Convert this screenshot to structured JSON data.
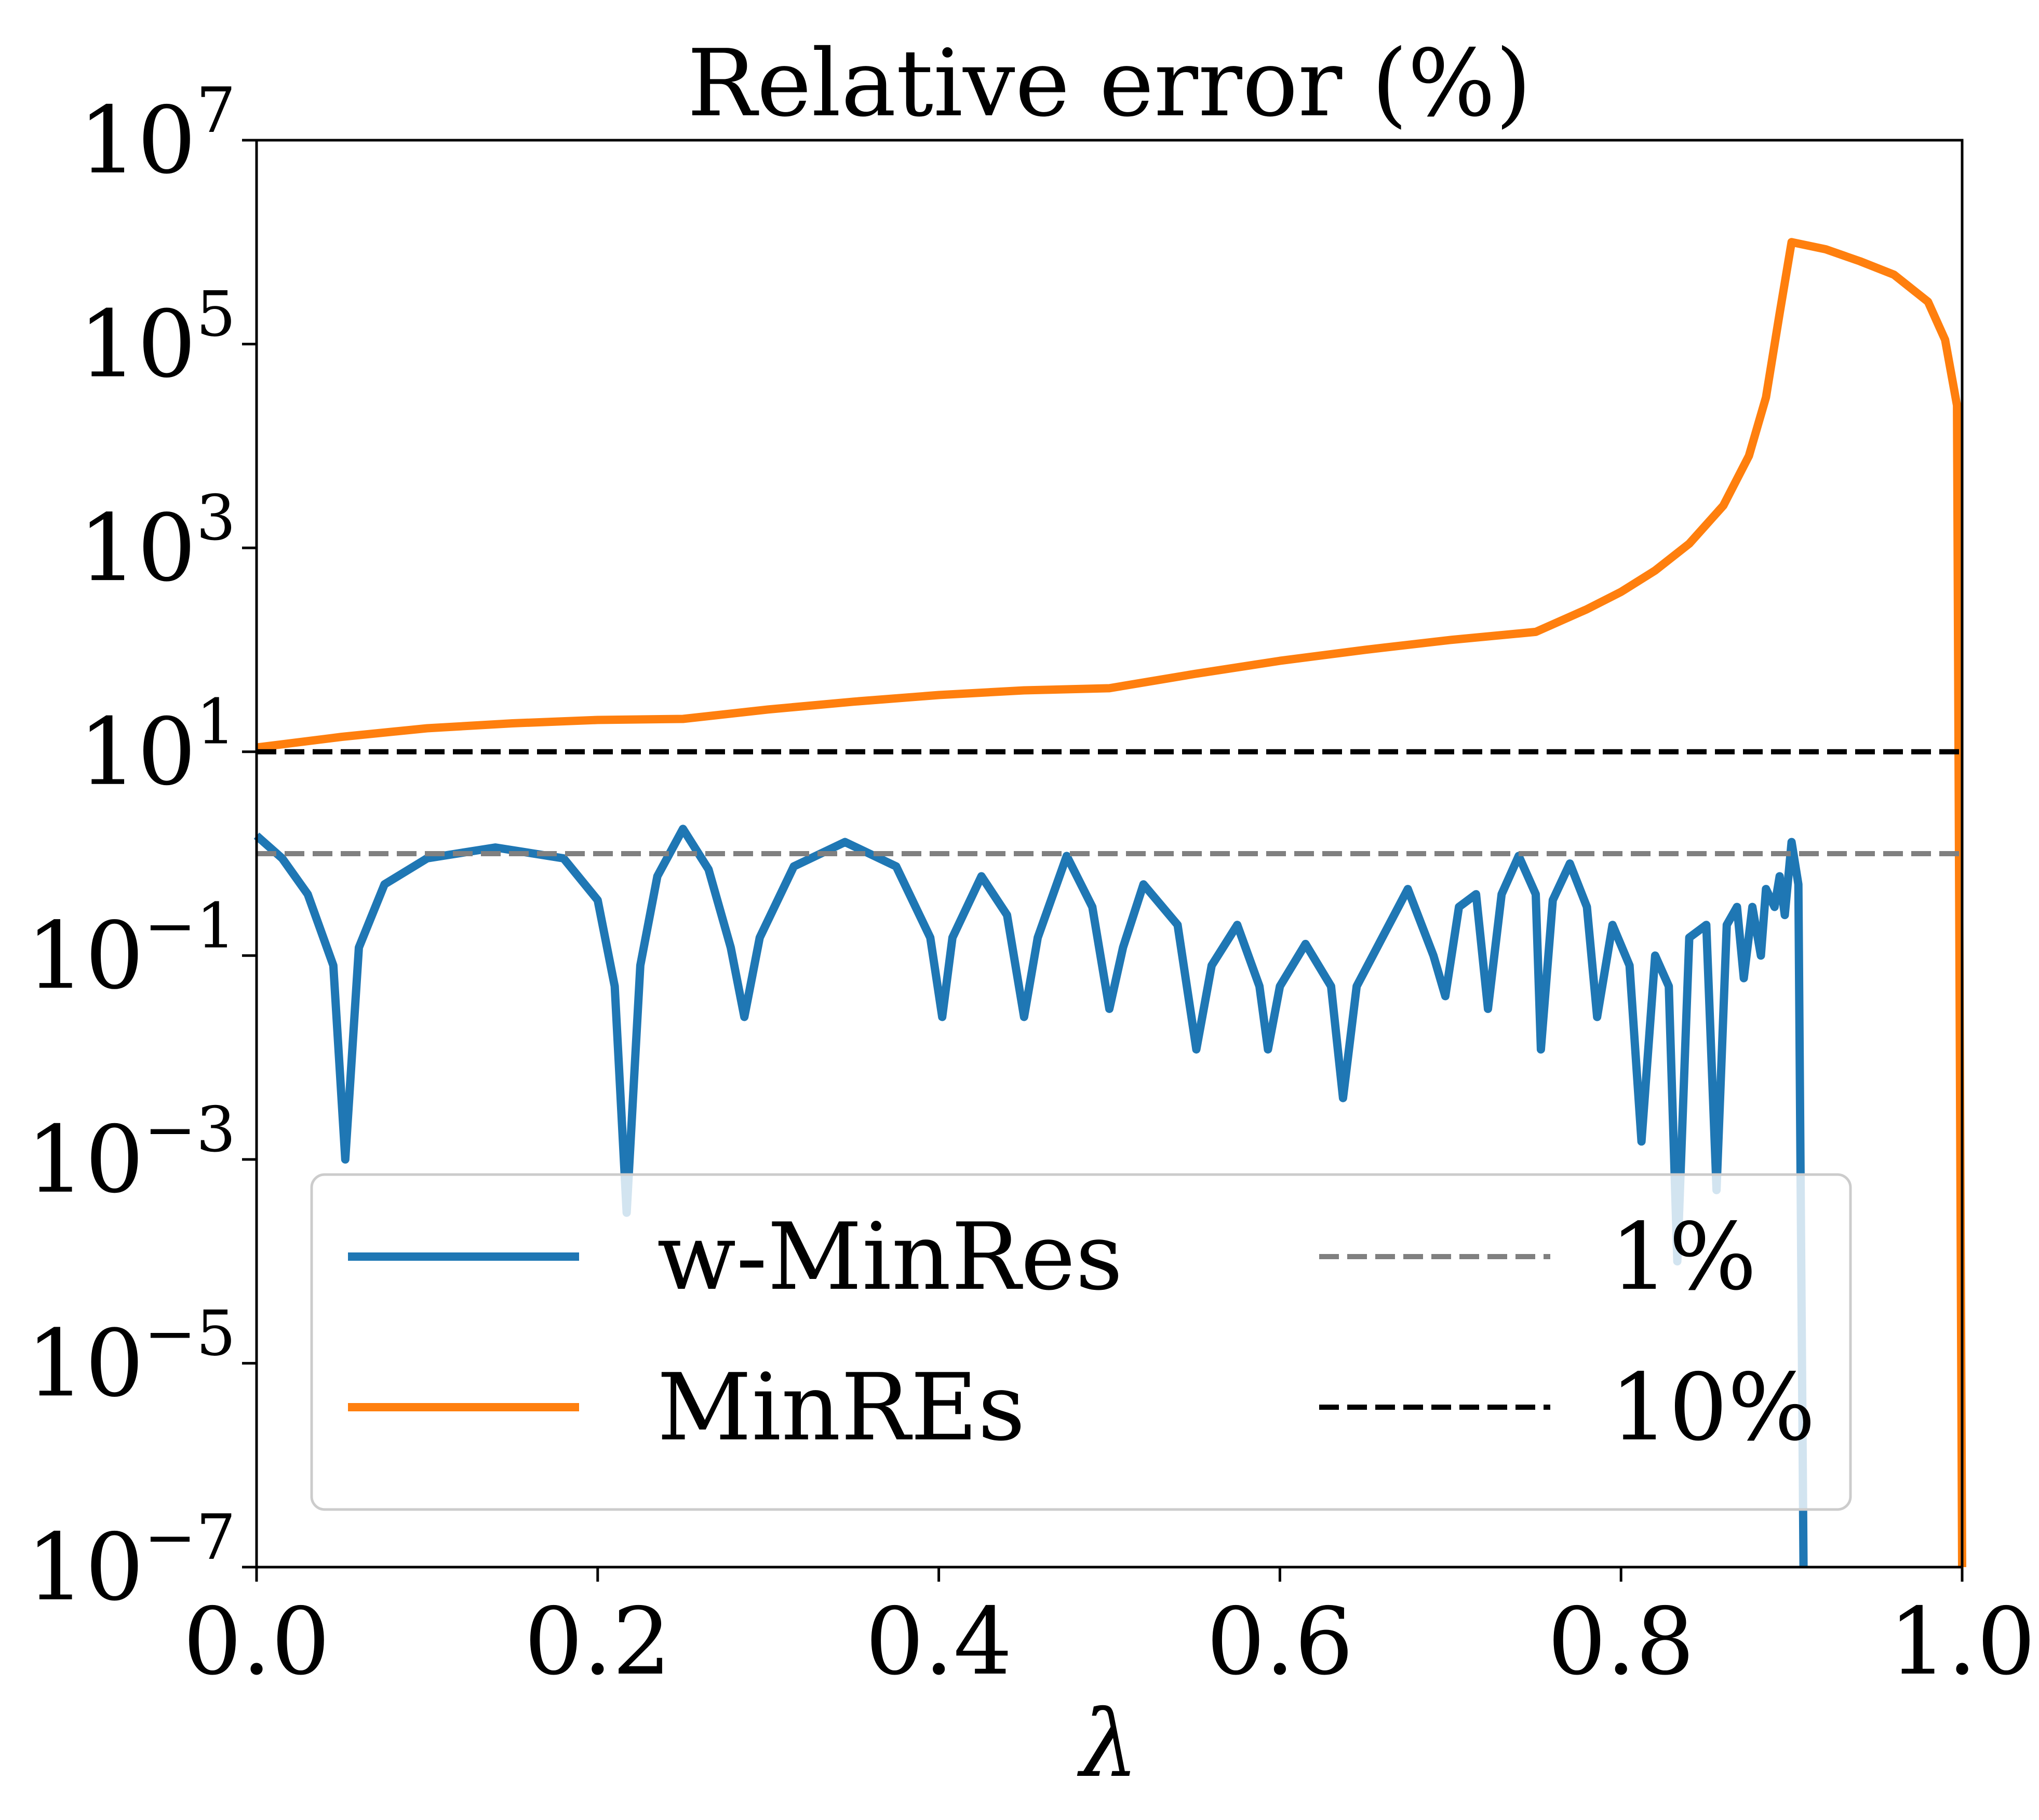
{
  "chart_data": {
    "type": "line",
    "title": "Relative error (%)",
    "xlabel": "λ",
    "ylabel": "",
    "xlim": [
      0.0,
      1.0
    ],
    "ylim": [
      1e-07,
      10000000.0
    ],
    "yscale": "log",
    "grid": false,
    "legend_position": "lower-left",
    "x_tick_labels": [
      "0.0",
      "0.2",
      "0.4",
      "0.6",
      "0.8",
      "1.0"
    ],
    "y_tick_labels": [
      {
        "base": "10",
        "exp": "−7"
      },
      {
        "base": "10",
        "exp": "−5"
      },
      {
        "base": "10",
        "exp": "−3"
      },
      {
        "base": "10",
        "exp": "−1"
      },
      {
        "base": "10",
        "exp": "1"
      },
      {
        "base": "10",
        "exp": "3"
      },
      {
        "base": "10",
        "exp": "5"
      },
      {
        "base": "10",
        "exp": "7"
      }
    ],
    "series": [
      {
        "name": "w-MinRes",
        "color": "#1f77b4",
        "style": "solid",
        "points": [
          [
            0.0,
            1.5
          ],
          [
            0.015,
            0.9
          ],
          [
            0.03,
            0.4
          ],
          [
            0.045,
            0.08
          ],
          [
            0.052,
            0.001
          ],
          [
            0.06,
            0.12
          ],
          [
            0.075,
            0.5
          ],
          [
            0.1,
            0.9
          ],
          [
            0.14,
            1.15
          ],
          [
            0.18,
            0.9
          ],
          [
            0.2,
            0.35
          ],
          [
            0.21,
            0.05
          ],
          [
            0.217,
            0.0003
          ],
          [
            0.225,
            0.08
          ],
          [
            0.235,
            0.6
          ],
          [
            0.25,
            1.75
          ],
          [
            0.265,
            0.7
          ],
          [
            0.278,
            0.12
          ],
          [
            0.286,
            0.025
          ],
          [
            0.295,
            0.15
          ],
          [
            0.315,
            0.75
          ],
          [
            0.345,
            1.3
          ],
          [
            0.375,
            0.75
          ],
          [
            0.395,
            0.15
          ],
          [
            0.402,
            0.025
          ],
          [
            0.408,
            0.15
          ],
          [
            0.425,
            0.6
          ],
          [
            0.44,
            0.25
          ],
          [
            0.45,
            0.025
          ],
          [
            0.458,
            0.15
          ],
          [
            0.475,
            0.95
          ],
          [
            0.49,
            0.3
          ],
          [
            0.5,
            0.03
          ],
          [
            0.508,
            0.12
          ],
          [
            0.52,
            0.5
          ],
          [
            0.54,
            0.2
          ],
          [
            0.551,
            0.012
          ],
          [
            0.56,
            0.08
          ],
          [
            0.575,
            0.2
          ],
          [
            0.588,
            0.05
          ],
          [
            0.593,
            0.012
          ],
          [
            0.6,
            0.05
          ],
          [
            0.615,
            0.13
          ],
          [
            0.63,
            0.05
          ],
          [
            0.637,
            0.004
          ],
          [
            0.645,
            0.05
          ],
          [
            0.675,
            0.45
          ],
          [
            0.69,
            0.1
          ],
          [
            0.697,
            0.04
          ],
          [
            0.705,
            0.3
          ],
          [
            0.715,
            0.4
          ],
          [
            0.722,
            0.03
          ],
          [
            0.73,
            0.4
          ],
          [
            0.74,
            0.95
          ],
          [
            0.75,
            0.4
          ],
          [
            0.753,
            0.012
          ],
          [
            0.76,
            0.35
          ],
          [
            0.77,
            0.8
          ],
          [
            0.78,
            0.3
          ],
          [
            0.786,
            0.025
          ],
          [
            0.795,
            0.2
          ],
          [
            0.805,
            0.08
          ],
          [
            0.812,
            0.0015
          ],
          [
            0.82,
            0.1
          ],
          [
            0.828,
            0.05
          ],
          [
            0.833,
            0.0001
          ],
          [
            0.84,
            0.15
          ],
          [
            0.85,
            0.2
          ],
          [
            0.856,
            0.0005
          ],
          [
            0.862,
            0.2
          ],
          [
            0.868,
            0.3
          ],
          [
            0.872,
            0.06
          ],
          [
            0.877,
            0.3
          ],
          [
            0.882,
            0.1
          ],
          [
            0.885,
            0.45
          ],
          [
            0.89,
            0.3
          ],
          [
            0.893,
            0.6
          ],
          [
            0.896,
            0.25
          ],
          [
            0.9,
            1.3
          ],
          [
            0.904,
            0.5
          ],
          [
            0.907,
            1e-07
          ]
        ]
      },
      {
        "name": "MinREs",
        "color": "#ff7f0e",
        "style": "solid",
        "points": [
          [
            0.0,
            11
          ],
          [
            0.05,
            14
          ],
          [
            0.1,
            17
          ],
          [
            0.15,
            19
          ],
          [
            0.2,
            20.5
          ],
          [
            0.25,
            21
          ],
          [
            0.3,
            26
          ],
          [
            0.35,
            31
          ],
          [
            0.4,
            36
          ],
          [
            0.45,
            40
          ],
          [
            0.5,
            42
          ],
          [
            0.55,
            58
          ],
          [
            0.6,
            78
          ],
          [
            0.65,
            100
          ],
          [
            0.7,
            125
          ],
          [
            0.75,
            150
          ],
          [
            0.78,
            250
          ],
          [
            0.8,
            370
          ],
          [
            0.82,
            600
          ],
          [
            0.84,
            1100
          ],
          [
            0.86,
            2600
          ],
          [
            0.875,
            8000
          ],
          [
            0.885,
            30000
          ],
          [
            0.893,
            200000
          ],
          [
            0.9,
            1000000
          ],
          [
            0.92,
            850000
          ],
          [
            0.94,
            650000
          ],
          [
            0.96,
            480000
          ],
          [
            0.98,
            260000
          ],
          [
            0.99,
            110000
          ],
          [
            0.997,
            25000
          ],
          [
            1.0,
            1e-07
          ]
        ]
      },
      {
        "name": "1%",
        "color": "#808080",
        "style": "dashed",
        "points": [
          [
            0.0,
            1
          ],
          [
            1.0,
            1
          ]
        ]
      },
      {
        "name": "10%",
        "color": "#000000",
        "style": "dashed",
        "points": [
          [
            0.0,
            10
          ],
          [
            1.0,
            10
          ]
        ]
      }
    ],
    "legend": [
      {
        "label": "w-MinRes",
        "color": "#1f77b4",
        "style": "solid"
      },
      {
        "label": "MinREs",
        "color": "#ff7f0e",
        "style": "solid"
      },
      {
        "label": "1%",
        "color": "#808080",
        "style": "dashed"
      },
      {
        "label": "10%",
        "color": "#000000",
        "style": "dashed"
      }
    ]
  }
}
